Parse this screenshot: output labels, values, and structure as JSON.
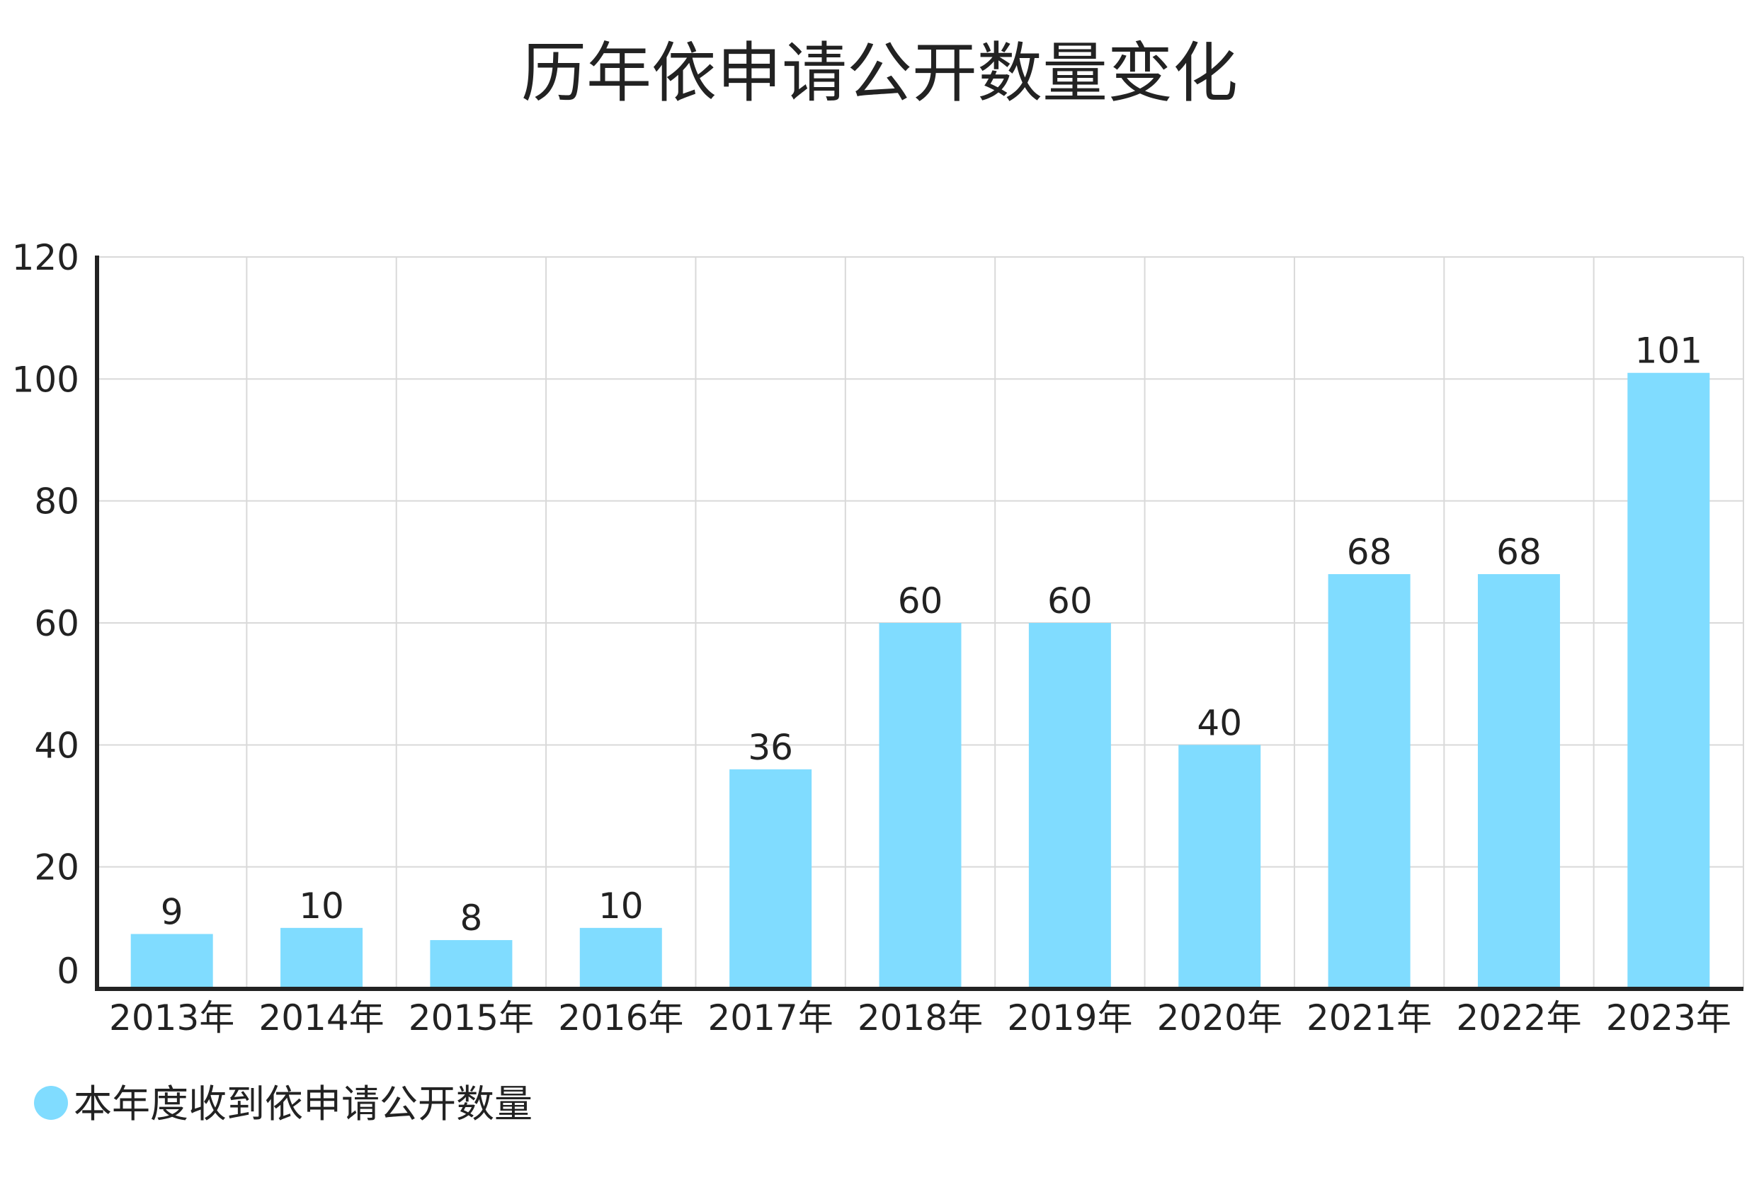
{
  "chart_data": {
    "type": "bar",
    "title": "历年依申请公开数量变化",
    "categories": [
      "2013年",
      "2014年",
      "2015年",
      "2016年",
      "2017年",
      "2018年",
      "2019年",
      "2020年",
      "2021年",
      "2022年",
      "2023年"
    ],
    "series": [
      {
        "name": "本年度收到依申请公开数量",
        "values": [
          9,
          10,
          8,
          10,
          36,
          60,
          60,
          40,
          68,
          68,
          101
        ],
        "color": "#80dcff"
      }
    ],
    "ylim": [
      0,
      120
    ],
    "yticks": [
      "0",
      "20",
      "40",
      "60",
      "80",
      "100",
      "120"
    ],
    "ytick_values": [
      0,
      20,
      40,
      60,
      80,
      100,
      120
    ],
    "grid": true,
    "data_labels": true,
    "legend_position": "bottom-left",
    "colors": {
      "grid": "#d9d9d9",
      "axis": "#222222",
      "text": "#222222"
    }
  }
}
